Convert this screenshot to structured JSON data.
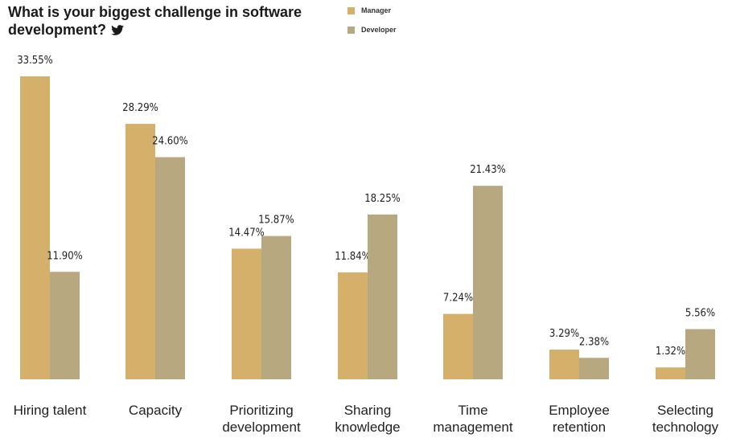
{
  "header": {
    "title": "What is your biggest challenge in software development?",
    "icon": "twitter-icon"
  },
  "colors": {
    "manager": "#d4b06a",
    "developer": "#b8a880"
  },
  "chart_data": {
    "type": "bar",
    "title": "What is your biggest challenge in software development?",
    "categories": [
      [
        "Hiring talent"
      ],
      [
        "Capacity"
      ],
      [
        "Prioritizing",
        "development"
      ],
      [
        "Sharing",
        "knowledge"
      ],
      [
        "Time",
        "management"
      ],
      [
        "Employee",
        "retention"
      ],
      [
        "Selecting",
        "technology"
      ]
    ],
    "series": [
      {
        "name": "Manager",
        "values": [
          33.55,
          28.29,
          14.47,
          11.84,
          7.24,
          3.29,
          1.32
        ],
        "labels": [
          "33.55%",
          "28.29%",
          "14.47%",
          "11.84%",
          "7.24%",
          "3.29%",
          "1.32%"
        ]
      },
      {
        "name": "Developer",
        "values": [
          11.9,
          24.6,
          15.87,
          18.25,
          21.43,
          2.38,
          5.56
        ],
        "labels": [
          "11.90%",
          "24.60%",
          "15.87%",
          "18.25%",
          "21.43%",
          "2.38%",
          "5.56%"
        ]
      }
    ],
    "ylim": [
      0,
      33.55
    ],
    "grid": false,
    "legend": "top"
  }
}
